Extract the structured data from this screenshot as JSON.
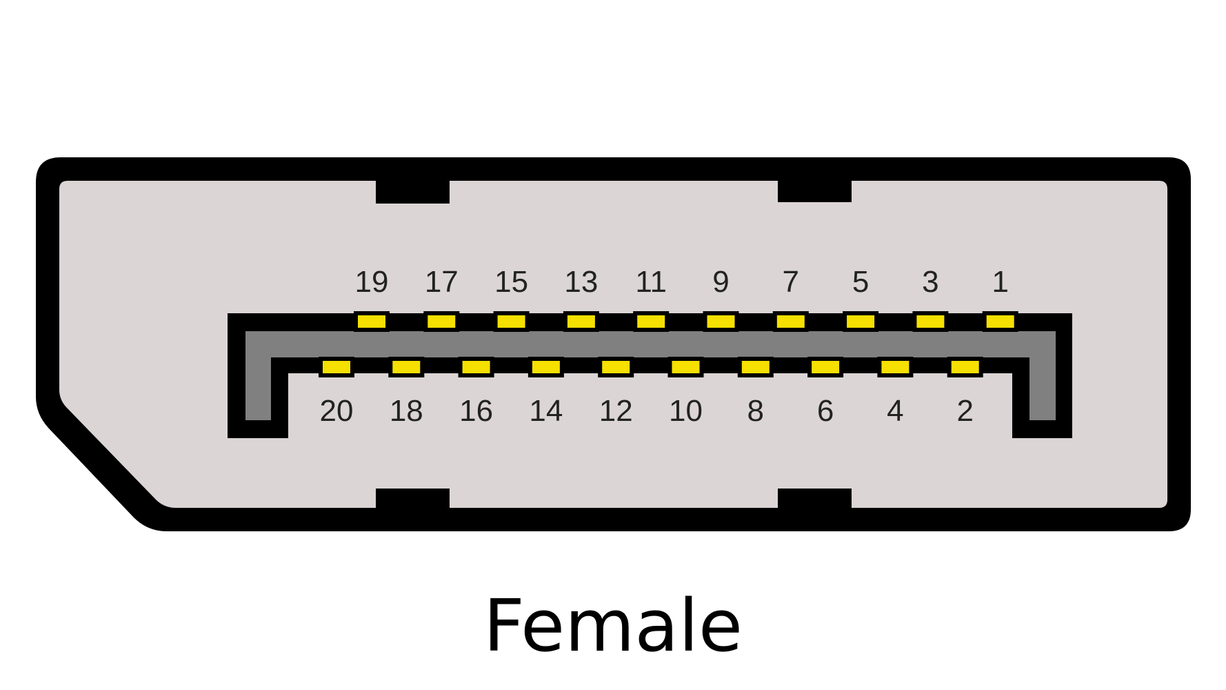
{
  "caption": "Female",
  "colors": {
    "background": "#ffffff",
    "outline": "#000000",
    "shell_fill": "#dbd5d5",
    "tongue_fill": "#808080",
    "pin_fill": "#f5e000",
    "label_text": "#222222"
  },
  "top_row_pins": [
    "19",
    "17",
    "15",
    "13",
    "11",
    "9",
    "7",
    "5",
    "3",
    "1"
  ],
  "bottom_row_pins": [
    "20",
    "18",
    "16",
    "14",
    "12",
    "10",
    "8",
    "6",
    "4",
    "2"
  ]
}
